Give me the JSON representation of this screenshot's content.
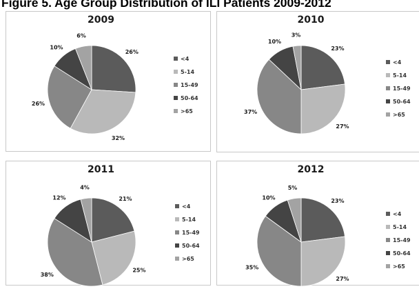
{
  "figure_title": "Figure 5. Age Group Distribution of ILI Patients 2009-2012",
  "colors": {
    "<4": "#5b5b5b",
    "5-14": "#b9b9b9",
    "15-49": "#878787",
    "50-64": "#444444",
    ">65": "#a3a3a3"
  },
  "chart_data": [
    {
      "type": "pie",
      "title": "2009",
      "categories": [
        "<4",
        "5-14",
        "15-49",
        "50-64",
        ">65"
      ],
      "values": [
        26,
        32,
        26,
        10,
        6
      ],
      "labels": [
        "26%",
        "32%",
        "26%",
        "10%",
        "6%"
      ],
      "legend": "right"
    },
    {
      "type": "pie",
      "title": "2010",
      "categories": [
        "<4",
        "5-14",
        "15-49",
        "50-64",
        ">65"
      ],
      "values": [
        23,
        27,
        37,
        10,
        3
      ],
      "labels": [
        "23%",
        "27%",
        "37%",
        "10%",
        "3%"
      ],
      "legend": "right"
    },
    {
      "type": "pie",
      "title": "2011",
      "categories": [
        "<4",
        "5-14",
        "15-49",
        "50-64",
        ">65"
      ],
      "values": [
        21,
        25,
        38,
        12,
        4
      ],
      "labels": [
        "21%",
        "25%",
        "38%",
        "12%",
        "4%"
      ],
      "legend": "right"
    },
    {
      "type": "pie",
      "title": "2012",
      "categories": [
        "<4",
        "5-14",
        "15-49",
        "50-64",
        ">65"
      ],
      "values": [
        23,
        27,
        35,
        10,
        5
      ],
      "labels": [
        "23%",
        "27%",
        "35%",
        "10%",
        "5%"
      ],
      "legend": "right"
    }
  ]
}
